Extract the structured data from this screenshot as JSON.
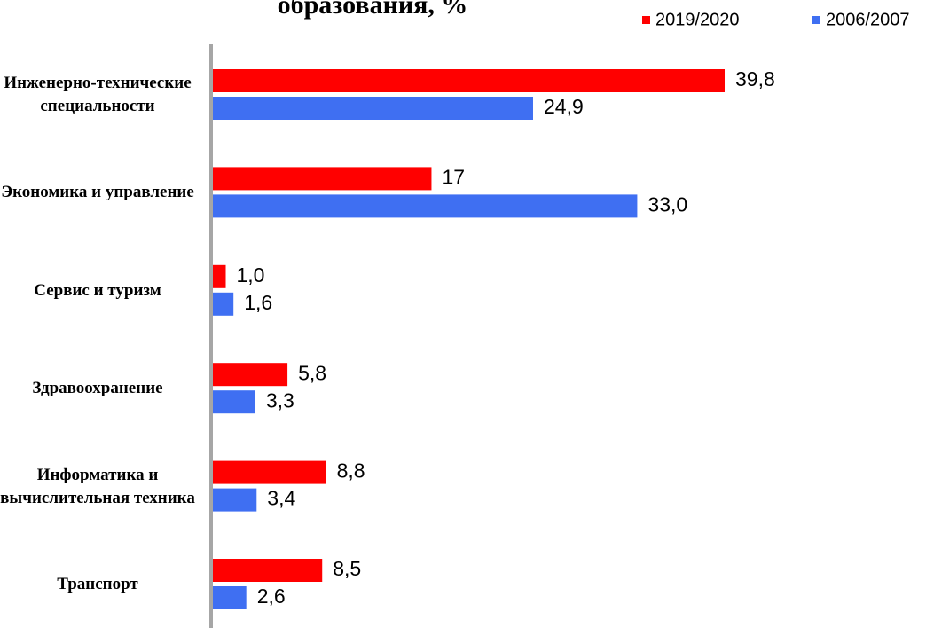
{
  "chart_data": {
    "type": "bar",
    "orientation": "horizontal",
    "title": "образования, %",
    "categories": [
      "Инженерно-технические специальности",
      "Экономика и управление",
      "Сервис и туризм",
      "Здравоохранение",
      "Информатика и вычислительная техника",
      "Транспорт"
    ],
    "series": [
      {
        "name": "2019/2020",
        "color": "#ff0000",
        "values": [
          39.8,
          17,
          1.0,
          5.8,
          8.8,
          8.5
        ],
        "value_labels": [
          "39,8",
          "17",
          "1,0",
          "5,8",
          "8,8",
          "8,5"
        ]
      },
      {
        "name": "2006/2007",
        "color": "#3f6ff2",
        "values": [
          24.9,
          33.0,
          1.6,
          3.3,
          3.4,
          2.6
        ],
        "value_labels": [
          "24,9",
          "33,0",
          "1,6",
          "3,3",
          "3,4",
          "2,6"
        ]
      }
    ]
  }
}
